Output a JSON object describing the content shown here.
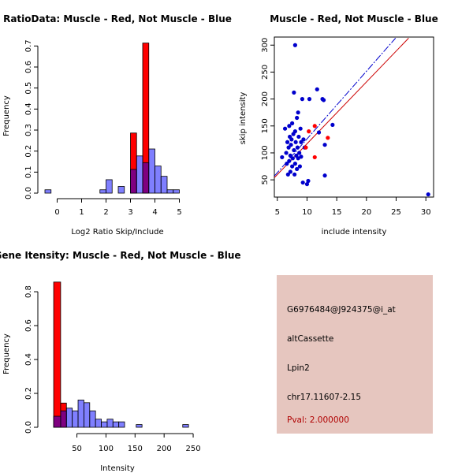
{
  "chart_data": [
    {
      "type": "histogram",
      "title": "RatioData: Muscle - Red, Not Muscle - Blue",
      "xlabel": "Log2 Ratio Skip/Include",
      "ylabel": "Frequency",
      "xlim": [
        -0.5,
        5.5
      ],
      "ylim": [
        0,
        0.72
      ],
      "x_ticks": [
        0,
        1,
        2,
        3,
        4,
        5
      ],
      "y_ticks": [
        0.0,
        0.1,
        0.2,
        0.3,
        0.4,
        0.5,
        0.6,
        0.7
      ],
      "bin_width": 0.25,
      "series": [
        {
          "name": "Muscle",
          "color": "#ff0000",
          "bins": [
            {
              "start": 3.0,
              "value": 0.286
            },
            {
              "start": 3.5,
              "value": 0.714
            }
          ]
        },
        {
          "name": "Not Muscle",
          "color": "#0000ff",
          "bins": [
            {
              "start": -0.5,
              "value": 0.016
            },
            {
              "start": 1.75,
              "value": 0.016
            },
            {
              "start": 2.0,
              "value": 0.064
            },
            {
              "start": 2.5,
              "value": 0.032
            },
            {
              "start": 3.0,
              "value": 0.113
            },
            {
              "start": 3.25,
              "value": 0.177
            },
            {
              "start": 3.5,
              "value": 0.145
            },
            {
              "start": 3.75,
              "value": 0.21
            },
            {
              "start": 4.0,
              "value": 0.129
            },
            {
              "start": 4.25,
              "value": 0.08
            },
            {
              "start": 4.5,
              "value": 0.016
            },
            {
              "start": 4.75,
              "value": 0.016
            }
          ]
        }
      ]
    },
    {
      "type": "scatter",
      "title": "Muscle - Red, Not Muscle - Blue",
      "xlabel": "include intensity",
      "ylabel": "skip intensity",
      "xlim": [
        4.5,
        31.3
      ],
      "ylim": [
        18,
        315
      ],
      "x_ticks": [
        5,
        10,
        15,
        20,
        25,
        30
      ],
      "y_ticks": [
        50,
        100,
        150,
        200,
        250,
        300
      ],
      "series": [
        {
          "name": "Not Muscle",
          "color": "#0000cc",
          "points": [
            [
              5.8,
              92
            ],
            [
              6.3,
              145
            ],
            [
              6.5,
              100
            ],
            [
              6.6,
              80
            ],
            [
              6.7,
              120
            ],
            [
              6.8,
              60
            ],
            [
              6.9,
              110
            ],
            [
              7.0,
              150
            ],
            [
              7.0,
              85
            ],
            [
              7.1,
              130
            ],
            [
              7.2,
              65
            ],
            [
              7.2,
              95
            ],
            [
              7.3,
              115
            ],
            [
              7.4,
              125
            ],
            [
              7.5,
              155
            ],
            [
              7.5,
              75
            ],
            [
              7.6,
              90
            ],
            [
              7.7,
              135
            ],
            [
              7.8,
              105
            ],
            [
              7.8,
              212
            ],
            [
              7.9,
              60
            ],
            [
              8.0,
              300
            ],
            [
              8.0,
              140
            ],
            [
              8.0,
              80
            ],
            [
              8.1,
              120
            ],
            [
              8.2,
              95
            ],
            [
              8.3,
              165
            ],
            [
              8.3,
              70
            ],
            [
              8.4,
              110
            ],
            [
              8.5,
              175
            ],
            [
              8.5,
              90
            ],
            [
              8.6,
              130
            ],
            [
              8.7,
              100
            ],
            [
              8.8,
              75
            ],
            [
              8.9,
              145
            ],
            [
              9.0,
              120
            ],
            [
              9.0,
              93
            ],
            [
              9.2,
              200
            ],
            [
              9.3,
              45
            ],
            [
              9.4,
              125
            ],
            [
              9.6,
              110
            ],
            [
              10.0,
              42
            ],
            [
              10.2,
              48
            ],
            [
              10.4,
              200
            ],
            [
              11.7,
              218
            ],
            [
              12.0,
              138
            ],
            [
              12.6,
              200
            ],
            [
              12.8,
              198
            ],
            [
              13.0,
              58
            ],
            [
              13.0,
              115
            ],
            [
              14.3,
              152
            ],
            [
              30.4,
              23
            ]
          ]
        },
        {
          "name": "Muscle",
          "color": "#ff0000",
          "points": [
            [
              9.8,
              110
            ],
            [
              10.3,
              140
            ],
            [
              11.3,
              150
            ],
            [
              11.3,
              92
            ],
            [
              13.5,
              128
            ]
          ]
        }
      ],
      "fit_lines": [
        {
          "name": "Not Muscle fit",
          "color": "#0000cc",
          "dash": true,
          "from": [
            4.5,
            57
          ],
          "to": [
            24.9,
            313
          ]
        },
        {
          "name": "Muscle fit",
          "color": "#cc0000",
          "dash": false,
          "from": [
            4.5,
            54
          ],
          "to": [
            27.1,
            313
          ]
        }
      ]
    },
    {
      "type": "histogram",
      "title": "Gene Itensity: Muscle - Red, Not Muscle - Blue",
      "xlabel": "Intensity",
      "ylabel": "Frequency",
      "xlim": [
        -5,
        254
      ],
      "ylim": [
        0,
        0.87
      ],
      "x_ticks": [
        50,
        100,
        150,
        200,
        250
      ],
      "y_ticks": [
        0.0,
        0.2,
        0.4,
        0.6,
        0.8
      ],
      "series": [
        {
          "name": "Muscle",
          "color": "#ff0000",
          "bins": [
            {
              "start": 10,
              "end": 22,
              "value": 0.857
            },
            {
              "start": 22,
              "end": 32,
              "value": 0.143
            }
          ]
        },
        {
          "name": "Not Muscle",
          "color": "#0000ff",
          "bins": [
            {
              "start": 10,
              "end": 22,
              "value": 0.065
            },
            {
              "start": 22,
              "end": 32,
              "value": 0.097
            },
            {
              "start": 32,
              "end": 42,
              "value": 0.113
            },
            {
              "start": 42,
              "end": 52,
              "value": 0.097
            },
            {
              "start": 52,
              "end": 62,
              "value": 0.161
            },
            {
              "start": 62,
              "end": 72,
              "value": 0.145
            },
            {
              "start": 72,
              "end": 82,
              "value": 0.097
            },
            {
              "start": 82,
              "end": 92,
              "value": 0.048
            },
            {
              "start": 92,
              "end": 102,
              "value": 0.032
            },
            {
              "start": 102,
              "end": 112,
              "value": 0.048
            },
            {
              "start": 112,
              "end": 122,
              "value": 0.032
            },
            {
              "start": 122,
              "end": 132,
              "value": 0.032
            },
            {
              "start": 152,
              "end": 162,
              "value": 0.016
            },
            {
              "start": 232,
              "end": 242,
              "value": 0.016
            }
          ]
        }
      ]
    }
  ],
  "info": {
    "probe_id": "G6976484@J924375@i_at",
    "event_type": "altCassette",
    "gene": "Lpin2",
    "location": "chr17.11607-2.15",
    "pval": "Pval: 2.000000",
    "background": "#e6c6bf",
    "pval_color": "#b00000"
  }
}
